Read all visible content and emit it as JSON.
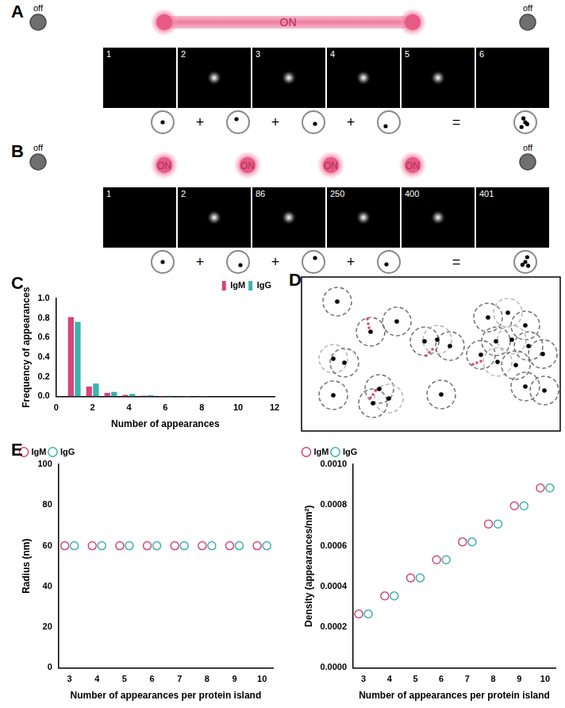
{
  "diagrams": {
    "A": {
      "panel": "A",
      "states": [
        "off",
        "ON",
        "off"
      ],
      "frames": [
        "1",
        "2",
        "3",
        "4",
        "5",
        "6"
      ],
      "operators": [
        "+",
        "+",
        "+",
        "="
      ]
    },
    "B": {
      "panel": "B",
      "states": [
        "off",
        "ON",
        "ON",
        "ON",
        "ON",
        "off"
      ],
      "frames": [
        "1",
        "2",
        "86",
        "250",
        "400",
        "401"
      ],
      "operators": [
        "+",
        "+",
        "+",
        "="
      ]
    },
    "D": {
      "panel": "D"
    }
  },
  "chart_data": [
    {
      "panel": "C",
      "type": "bar",
      "x": [
        1,
        2,
        3,
        4,
        5,
        6,
        7,
        8
      ],
      "series": [
        {
          "name": "IgM",
          "color": "#d6457a",
          "values": [
            0.81,
            0.1,
            0.035,
            0.015,
            0.007,
            0.004,
            0.002,
            0.001
          ]
        },
        {
          "name": "IgG",
          "color": "#3bb3ad",
          "values": [
            0.76,
            0.13,
            0.045,
            0.025,
            0.012,
            0.006,
            0.003,
            0.002
          ]
        }
      ],
      "xlabel": "Number of appearances",
      "ylabel": "Frequency of appearances",
      "xlim": [
        0,
        12
      ],
      "xticks": [
        0,
        2,
        4,
        6,
        8,
        10,
        12
      ],
      "ylim": [
        0,
        1
      ],
      "yticks": [
        {
          "value": 0,
          "label": "0.0"
        },
        {
          "value": 0.2,
          "label": "0.2"
        },
        {
          "value": 0.4,
          "label": "0.4"
        },
        {
          "value": 0.6,
          "label": "0.6"
        },
        {
          "value": 0.8,
          "label": "0.8"
        },
        {
          "value": 1,
          "label": "1.0"
        }
      ],
      "grid": false,
      "legend": "upper right"
    },
    {
      "panel": "E",
      "type": "scatter",
      "x": [
        3,
        4,
        5,
        6,
        7,
        8,
        9,
        10
      ],
      "series": [
        {
          "name": "IgM",
          "color": "#d6457a",
          "values": [
            60,
            60,
            60,
            60,
            60,
            60,
            60,
            60
          ]
        },
        {
          "name": "IgG",
          "color": "#3bb3ad",
          "values": [
            60,
            60,
            60,
            60,
            60,
            60,
            60,
            60
          ]
        }
      ],
      "xlabel": "Number of appearances per protein island",
      "ylabel": "Radius (nm)",
      "xlim": [
        2.6,
        10.4
      ],
      "xticks": [
        3,
        4,
        5,
        6,
        7,
        8,
        9,
        10
      ],
      "ylim": [
        0,
        100
      ],
      "yticks": [
        0,
        20,
        40,
        60,
        80,
        100
      ],
      "grid": false,
      "legend": "upper left",
      "marker": "circle"
    },
    {
      "type": "scatter",
      "x": [
        3,
        4,
        5,
        6,
        7,
        8,
        9,
        10
      ],
      "series": [
        {
          "name": "IgM",
          "color": "#d6457a",
          "values": [
            0.000265,
            0.000354,
            0.000442,
            0.000531,
            0.000619,
            0.000707,
            0.000796,
            0.000884
          ]
        },
        {
          "name": "IgG",
          "color": "#3bb3ad",
          "values": [
            0.000265,
            0.000354,
            0.000442,
            0.000531,
            0.000619,
            0.000707,
            0.000796,
            0.000884
          ]
        }
      ],
      "xlabel": "Number of appearances per protein island",
      "ylabel": "Density (appearances/nm²)",
      "xlim": [
        2.6,
        10.4
      ],
      "xticks": [
        3,
        4,
        5,
        6,
        7,
        8,
        9,
        10
      ],
      "ylim": [
        0,
        0.001
      ],
      "yticks": [
        {
          "value": 0,
          "label": "0.0000"
        },
        {
          "value": 0.0002,
          "label": "0.0002"
        },
        {
          "value": 0.0004,
          "label": "0.0004"
        },
        {
          "value": 0.0006,
          "label": "0.0006"
        },
        {
          "value": 0.0008,
          "label": "0.0008"
        },
        {
          "value": 0.001,
          "label": "0.0010"
        }
      ],
      "grid": false,
      "legend": "upper left",
      "marker": "circle"
    }
  ]
}
